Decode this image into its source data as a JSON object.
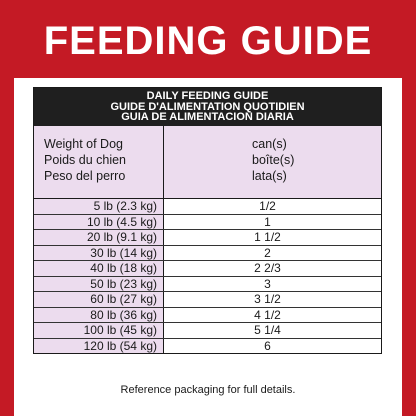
{
  "banner": {
    "title": "FEEDING GUIDE"
  },
  "table": {
    "header_lines": [
      "DAILY FEEDING GUIDE",
      "GUIDE D'ALIMENTATION QUOTIDIEN",
      "GUIA DE ALIMENTACION DIARIA"
    ],
    "col_weight": [
      "Weight of Dog",
      "Poids du chien",
      "Peso del perro"
    ],
    "col_cans": [
      "can(s)",
      "boîte(s)",
      "lata(s)"
    ],
    "rows": [
      {
        "weight": "5 lb (2.3 kg)",
        "cans": "1/2"
      },
      {
        "weight": "10 lb (4.5 kg)",
        "cans": "1"
      },
      {
        "weight": "20 lb (9.1 kg)",
        "cans": "1 1/2"
      },
      {
        "weight": "30 lb (14 kg)",
        "cans": "2"
      },
      {
        "weight": "40 lb (18 kg)",
        "cans": "2 2/3"
      },
      {
        "weight": "50 lb (23 kg)",
        "cans": "3"
      },
      {
        "weight": "60 lb (27 kg)",
        "cans": "3 1/2"
      },
      {
        "weight": "80 lb (36 kg)",
        "cans": "4 1/2"
      },
      {
        "weight": "100 lb (45 kg)",
        "cans": "5 1/4"
      },
      {
        "weight": "120 lb (54 kg)",
        "cans": "6"
      }
    ]
  },
  "footer": {
    "note": "Reference packaging for full details."
  },
  "colors": {
    "brand_red": "#c41a25",
    "header_dark": "#1f1f1f",
    "lavender": "#ecdcee"
  }
}
